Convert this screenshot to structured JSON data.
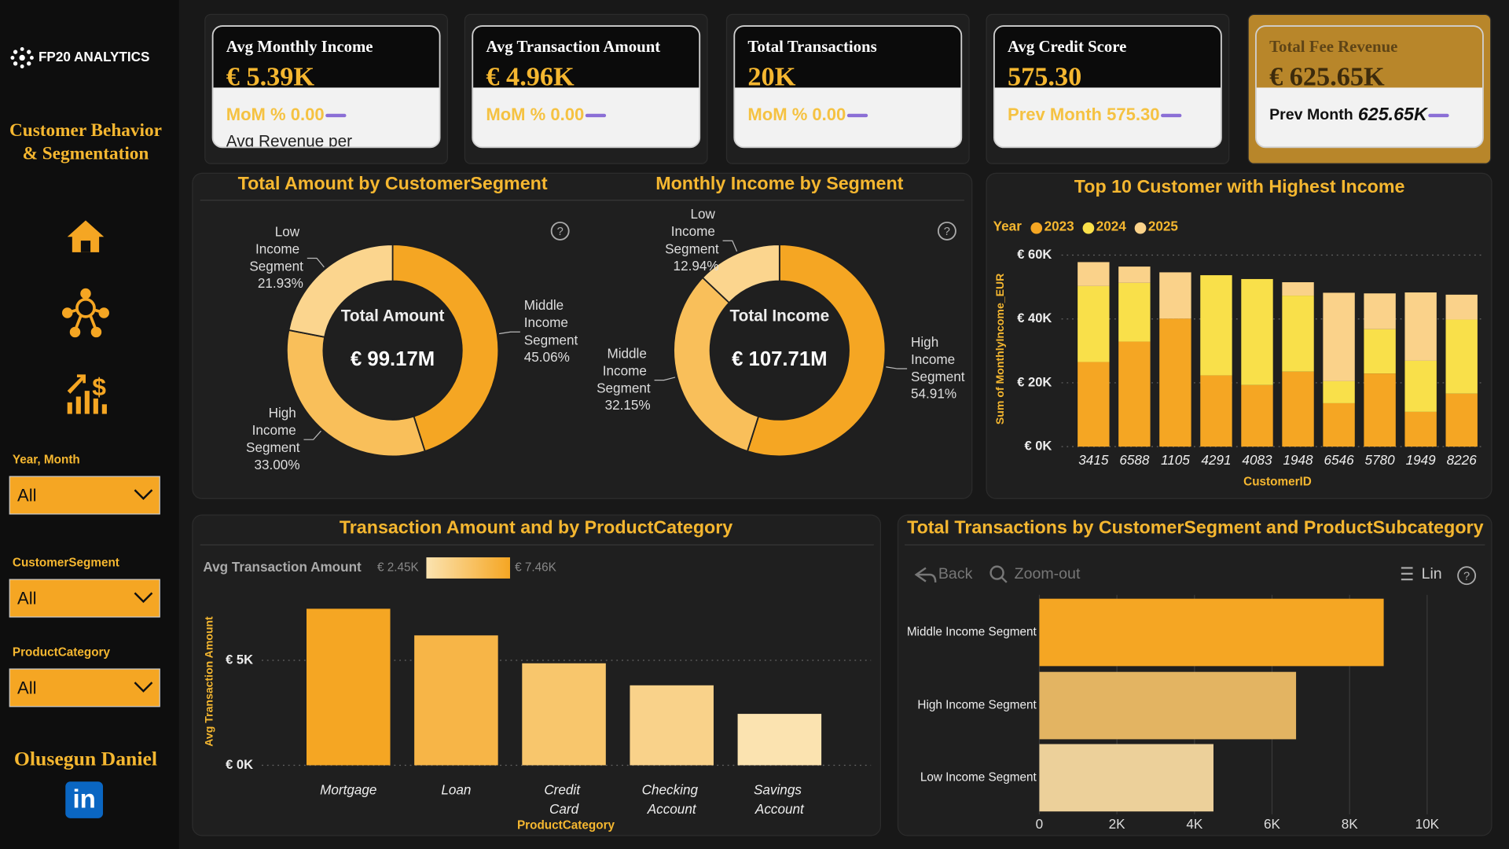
{
  "sidebar": {
    "brand": "FP20 ANALYTICS",
    "title_lines": [
      "Customer Behavior",
      "& Segmentation"
    ],
    "filters": [
      {
        "label": "Year, Month",
        "value": "All"
      },
      {
        "label": "CustomerSegment",
        "value": "All"
      },
      {
        "label": "ProductCategory",
        "value": "All"
      }
    ],
    "author": "Olusegun Daniel",
    "social": "in"
  },
  "kpis": [
    {
      "title": "Avg Monthly Income",
      "value": "€ 5.39K",
      "sub_label": "MoM %",
      "sub_value": "0.00",
      "note": "Avg Revenue per"
    },
    {
      "title": "Avg Transaction Amount",
      "value": "€ 4.96K",
      "sub_label": "MoM %",
      "sub_value": "0.00"
    },
    {
      "title": "Total Transactions",
      "value": "20K",
      "sub_label": "MoM %",
      "sub_value": "0.00"
    },
    {
      "title": "Avg Credit Score",
      "value": "575.30",
      "sub_label": "Prev Month",
      "sub_value": "575.30"
    },
    {
      "title": "Total Fee Revenue",
      "value": "€ 625.65K",
      "sub_label": "Prev Month",
      "sub_value": "625.65K",
      "highlighted": true
    }
  ],
  "chart_data": [
    {
      "type": "pie",
      "donut": true,
      "title": "Total Amount by CustomerSegment",
      "center_label": "Total Amount",
      "center_value": "€ 99.17M",
      "categories": [
        "Middle Income Segment",
        "High Income Segment",
        "Low Income Segment"
      ],
      "values": [
        45.06,
        33.0,
        21.93
      ],
      "value_labels": [
        "45.06%",
        "33.00%",
        "21.93%"
      ],
      "colors": [
        "#f5a623",
        "#f9bf5a",
        "#fbd58e"
      ]
    },
    {
      "type": "pie",
      "donut": true,
      "title": "Monthly Income by Segment",
      "center_label": "Total Income",
      "center_value": "€ 107.71M",
      "categories": [
        "High Income Segment",
        "Middle Income Segment",
        "Low Income Segment"
      ],
      "values": [
        54.91,
        32.15,
        12.94
      ],
      "value_labels": [
        "54.91%",
        "32.15%",
        "12.94%"
      ],
      "colors": [
        "#f5a623",
        "#f9bf5a",
        "#fbd58e"
      ]
    },
    {
      "type": "stacked_bar",
      "title": "Top 10 Customer with Highest Income",
      "legend_title": "Year",
      "categories": [
        "3415",
        "6588",
        "1105",
        "4291",
        "4083",
        "1948",
        "6546",
        "5780",
        "1949",
        "8226"
      ],
      "series": [
        {
          "name": "2023",
          "color": "#f5a623",
          "values": [
            26500,
            32900,
            40100,
            22300,
            19300,
            23500,
            13600,
            22900,
            10900,
            16600
          ]
        },
        {
          "name": "2024",
          "color": "#f9e04a",
          "values": [
            23800,
            18400,
            0,
            31400,
            33200,
            23800,
            6900,
            13900,
            16000,
            23200
          ]
        },
        {
          "name": "2025",
          "color": "#fad28a",
          "values": [
            7500,
            5100,
            14500,
            0,
            0,
            4200,
            27700,
            11200,
            21400,
            7800
          ]
        }
      ],
      "ylim": [
        0,
        60000
      ],
      "yticks": [
        {
          "value": 0,
          "label": "€ 0K"
        },
        {
          "value": 20000,
          "label": "€ 20K"
        },
        {
          "value": 40000,
          "label": "€ 40K"
        },
        {
          "value": 60000,
          "label": "€ 60K"
        }
      ],
      "ylabel": "Sum of MonthlyIncome_EUR",
      "xlabel": "CustomerID",
      "grid": true
    },
    {
      "type": "bar",
      "title": "Transaction Amount and by ProductCategory",
      "categories": [
        "Mortgage",
        "Loan",
        "Credit Card",
        "Checking Account",
        "Savings Account"
      ],
      "values": [
        7460,
        6190,
        4860,
        3810,
        2450
      ],
      "ylim": [
        0,
        7800
      ],
      "yticks": [
        {
          "value": 0,
          "label": "€ 0K"
        },
        {
          "value": 5000,
          "label": "€ 5K"
        }
      ],
      "ylabel": "Avg Transaction Amount",
      "xlabel": "ProductCategory",
      "grid": true,
      "color_scale": {
        "title": "Avg Transaction Amount",
        "min": 2450,
        "max": 7460,
        "min_label": "€ 2.45K",
        "max_label": "€ 7.46K",
        "colors": [
          "#fbe3b0",
          "#f5a623"
        ]
      }
    },
    {
      "type": "barh",
      "title": "Total Transactions by CustomerSegment and ProductSubcategory",
      "categories": [
        "Middle Income Segment",
        "High Income Segment",
        "Low Income Segment"
      ],
      "values": [
        8880,
        6620,
        4490
      ],
      "colors": [
        "#f5a623",
        "#e3b462",
        "#ecd09a"
      ],
      "xlim": [
        0,
        10200
      ],
      "xticks": [
        0,
        {
          "value": 2000,
          "label": "2K"
        },
        {
          "value": 4000,
          "label": "4K"
        },
        {
          "value": 6000,
          "label": "6K"
        },
        {
          "value": 8000,
          "label": "8K"
        },
        {
          "value": 10000,
          "label": "10K"
        }
      ],
      "grid": true,
      "toolbar": {
        "back": "Back",
        "zoom": "Zoom-out",
        "view": "Lin"
      }
    }
  ]
}
